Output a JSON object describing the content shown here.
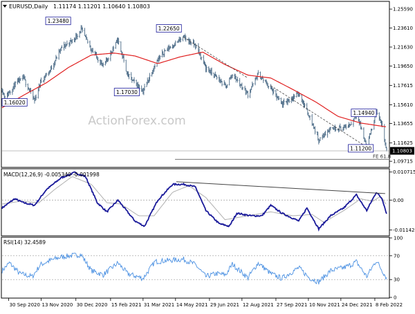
{
  "header": {
    "symbol_text": "EURUSD,Daily",
    "ohlc_text": "1.11174 1.11201 1.10640 1.10803"
  },
  "watermark": "ActionForex.com",
  "colors": {
    "bars": "#4a6a86",
    "moving_average": "#e02020",
    "macd": "#1a1a9a",
    "macd_signal": "#b0b0b0",
    "rsi": "#4a90e2",
    "trendline": "#444444",
    "price_label_bg": "#ffffff",
    "grid": "#cfcfcf",
    "fe_line": "#777777"
  },
  "chart_data": [
    {
      "type": "ohlc",
      "panel": "price",
      "title": "EURUSD,Daily",
      "ohlc_last": {
        "open": 1.11174,
        "high": 1.11201,
        "low": 1.1064,
        "close": 1.10803
      },
      "ylim": [
        1.0915,
        1.2632
      ],
      "yticks": [
        1.09715,
        1.11625,
        1.13655,
        1.1561,
        1.17615,
        1.1965,
        1.2163,
        1.2361,
        1.2559
      ],
      "ytick_labels": [
        "1.09715",
        "1.11625",
        "1.13655",
        "1.15610",
        "1.17615",
        "1.19650",
        "1.21630",
        "1.23610",
        "1.25590"
      ],
      "current_price_label": "1.10803",
      "current_price": 1.10803,
      "xtick_labels": [
        "30 Sep 2020",
        "13 Nov 2020",
        "30 Dec 2020",
        "15 Feb 2021",
        "31 Mar 2021",
        "14 May 2021",
        "29 Jun 2021",
        "12 Aug 2021",
        "27 Sep 2021",
        "10 Nov 2021",
        "24 Dec 2021",
        "8 Feb 2022"
      ],
      "xtick_dates": [
        "2020-09-30",
        "2020-11-13",
        "2020-12-30",
        "2021-02-15",
        "2021-03-31",
        "2021-05-14",
        "2021-06-29",
        "2021-08-12",
        "2021-09-27",
        "2021-11-10",
        "2021-12-24",
        "2022-02-08"
      ],
      "date_range": [
        "2020-09-21",
        "2022-02-24"
      ],
      "price_path": [
        [
          "2020-09-21",
          1.172
        ],
        [
          "2020-09-25",
          1.163
        ],
        [
          "2020-10-08",
          1.177
        ],
        [
          "2020-10-20",
          1.184
        ],
        [
          "2020-11-04",
          1.1603
        ],
        [
          "2020-11-12",
          1.18
        ],
        [
          "2020-11-25",
          1.192
        ],
        [
          "2020-12-10",
          1.215
        ],
        [
          "2020-12-28",
          1.225
        ],
        [
          "2021-01-06",
          1.2348
        ],
        [
          "2021-01-20",
          1.214
        ],
        [
          "2021-02-05",
          1.196
        ],
        [
          "2021-02-25",
          1.224
        ],
        [
          "2021-03-10",
          1.187
        ],
        [
          "2021-03-31",
          1.1703
        ],
        [
          "2021-04-16",
          1.198
        ],
        [
          "2021-04-29",
          1.212
        ],
        [
          "2021-05-25",
          1.2265
        ],
        [
          "2021-06-10",
          1.218
        ],
        [
          "2021-06-24",
          1.195
        ],
        [
          "2021-07-08",
          1.185
        ],
        [
          "2021-07-21",
          1.175
        ],
        [
          "2021-07-30",
          1.188
        ],
        [
          "2021-08-20",
          1.167
        ],
        [
          "2021-09-03",
          1.188
        ],
        [
          "2021-09-20",
          1.173
        ],
        [
          "2021-10-05",
          1.156
        ],
        [
          "2021-10-28",
          1.168
        ],
        [
          "2021-11-11",
          1.145
        ],
        [
          "2021-11-24",
          1.119
        ],
        [
          "2021-12-10",
          1.132
        ],
        [
          "2021-12-28",
          1.132
        ],
        [
          "2022-01-07",
          1.136
        ],
        [
          "2022-01-14",
          1.148
        ],
        [
          "2022-01-28",
          1.112
        ],
        [
          "2022-02-10",
          1.1494
        ],
        [
          "2022-02-18",
          1.132
        ],
        [
          "2022-02-24",
          1.108
        ]
      ],
      "moving_average_path": [
        [
          "2020-09-21",
          1.153
        ],
        [
          "2020-10-20",
          1.166
        ],
        [
          "2020-11-20",
          1.179
        ],
        [
          "2020-12-20",
          1.195
        ],
        [
          "2021-01-20",
          1.208
        ],
        [
          "2021-02-20",
          1.21
        ],
        [
          "2021-03-20",
          1.207
        ],
        [
          "2021-04-20",
          1.199
        ],
        [
          "2021-05-20",
          1.206
        ],
        [
          "2021-06-20",
          1.211
        ],
        [
          "2021-07-20",
          1.198
        ],
        [
          "2021-08-20",
          1.187
        ],
        [
          "2021-09-20",
          1.184
        ],
        [
          "2021-10-20",
          1.172
        ],
        [
          "2021-11-20",
          1.159
        ],
        [
          "2021-12-20",
          1.144
        ],
        [
          "2022-01-20",
          1.137
        ],
        [
          "2022-02-24",
          1.133
        ]
      ],
      "annotations": [
        {
          "text": "1.23480",
          "date": "2020-12-06",
          "price": 1.2432
        },
        {
          "text": "1.22650",
          "date": "2021-05-05",
          "price": 1.2354
        },
        {
          "text": "1.16020",
          "date": "2020-10-08",
          "price": 1.1583
        },
        {
          "text": "1.17030",
          "date": "2021-03-09",
          "price": 1.169
        },
        {
          "text": "1.14940",
          "date": "2022-01-24",
          "price": 1.1473
        },
        {
          "text": "1.11200",
          "date": "2022-01-20",
          "price": 1.1103
        }
      ],
      "trendlines": [
        {
          "from": [
            "2021-05-25",
            1.2265
          ],
          "to": [
            "2021-08-20",
            1.184
          ],
          "style": "dashed"
        },
        {
          "from": [
            "2021-09-20",
            1.176
          ],
          "to": [
            "2022-01-28",
            1.112
          ],
          "style": "dashed"
        }
      ],
      "fe_label": "FE 61.8",
      "fe_level": 1.0992
    },
    {
      "type": "line",
      "panel": "macd",
      "title": "MACD(12,26,9) -0.005340 -0.001998",
      "ylim": [
        -0.0134,
        0.0117
      ],
      "ytick_labels": [
        "0.010715",
        "0.00",
        "-0.011424"
      ],
      "yticks": [
        0.010715,
        0.0,
        -0.011424
      ],
      "series": [
        {
          "role": "macd",
          "values": [
            [
              "2020-09-21",
              -0.003
            ],
            [
              "2020-10-08",
              0.0005
            ],
            [
              "2020-10-20",
              -0.001
            ],
            [
              "2020-11-04",
              -0.002
            ],
            [
              "2020-11-20",
              0.004
            ],
            [
              "2020-12-10",
              0.0085
            ],
            [
              "2020-12-28",
              0.0105
            ],
            [
              "2021-01-12",
              0.009
            ],
            [
              "2021-01-28",
              -0.001
            ],
            [
              "2021-02-10",
              -0.0045
            ],
            [
              "2021-02-25",
              0.0
            ],
            [
              "2021-03-20",
              -0.008
            ],
            [
              "2021-04-02",
              -0.01
            ],
            [
              "2021-04-20",
              0.0
            ],
            [
              "2021-05-10",
              0.006
            ],
            [
              "2021-05-26",
              0.006
            ],
            [
              "2021-06-10",
              0.005
            ],
            [
              "2021-06-24",
              -0.004
            ],
            [
              "2021-07-12",
              -0.009
            ],
            [
              "2021-07-26",
              -0.01
            ],
            [
              "2021-08-05",
              -0.005
            ],
            [
              "2021-08-24",
              -0.006
            ],
            [
              "2021-09-08",
              -0.006
            ],
            [
              "2021-09-20",
              -0.002
            ],
            [
              "2021-10-05",
              -0.005
            ],
            [
              "2021-10-28",
              -0.008
            ],
            [
              "2021-11-08",
              -0.003
            ],
            [
              "2021-11-24",
              -0.011
            ],
            [
              "2021-12-10",
              -0.006
            ],
            [
              "2021-12-28",
              -0.003
            ],
            [
              "2022-01-14",
              0.002
            ],
            [
              "2022-01-28",
              -0.004
            ],
            [
              "2022-02-10",
              0.003
            ],
            [
              "2022-02-18",
              0.0005
            ],
            [
              "2022-02-24",
              -0.0053
            ]
          ]
        },
        {
          "role": "signal",
          "values": [
            [
              "2020-09-21",
              -0.0015
            ],
            [
              "2020-10-15",
              -0.0005
            ],
            [
              "2020-11-10",
              -0.001
            ],
            [
              "2020-12-01",
              0.004
            ],
            [
              "2020-12-25",
              0.009
            ],
            [
              "2021-01-20",
              0.006
            ],
            [
              "2021-02-10",
              -0.001
            ],
            [
              "2021-03-01",
              -0.0015
            ],
            [
              "2021-03-25",
              -0.006
            ],
            [
              "2021-04-15",
              -0.006
            ],
            [
              "2021-05-10",
              0.003
            ],
            [
              "2021-06-01",
              0.0055
            ],
            [
              "2021-06-24",
              0.001
            ],
            [
              "2021-07-20",
              -0.0075
            ],
            [
              "2021-08-20",
              -0.006
            ],
            [
              "2021-09-20",
              -0.0045
            ],
            [
              "2021-10-20",
              -0.006
            ],
            [
              "2021-11-15",
              -0.0055
            ],
            [
              "2021-12-01",
              -0.0085
            ],
            [
              "2021-12-28",
              -0.004
            ],
            [
              "2022-01-20",
              0.0005
            ],
            [
              "2022-02-05",
              -0.0005
            ],
            [
              "2022-02-16",
              0.0015
            ],
            [
              "2022-02-24",
              -0.002
            ]
          ]
        }
      ],
      "trendline": {
        "from": [
          "2021-05-15",
          0.007
        ],
        "to": [
          "2022-02-22",
          0.0025
        ]
      }
    },
    {
      "type": "line",
      "panel": "rsi",
      "title": "RSI(14) 32.4589",
      "ylim": [
        0,
        100
      ],
      "yticks": [
        100,
        70,
        30,
        0
      ],
      "ytick_labels": [
        "100",
        "70",
        "30",
        "0"
      ],
      "series": [
        {
          "role": "rsi",
          "values": [
            [
              "2020-09-21",
              45
            ],
            [
              "2020-10-01",
              58
            ],
            [
              "2020-10-15",
              40
            ],
            [
              "2020-11-01",
              35
            ],
            [
              "2020-11-12",
              55
            ],
            [
              "2020-11-25",
              62
            ],
            [
              "2020-12-10",
              68
            ],
            [
              "2020-12-22",
              70
            ],
            [
              "2021-01-06",
              72
            ],
            [
              "2021-01-20",
              45
            ],
            [
              "2021-02-05",
              38
            ],
            [
              "2021-02-25",
              58
            ],
            [
              "2021-03-10",
              40
            ],
            [
              "2021-03-31",
              32
            ],
            [
              "2021-04-16",
              60
            ],
            [
              "2021-05-03",
              62
            ],
            [
              "2021-05-25",
              64
            ],
            [
              "2021-06-10",
              55
            ],
            [
              "2021-06-24",
              35
            ],
            [
              "2021-07-08",
              40
            ],
            [
              "2021-07-21",
              38
            ],
            [
              "2021-07-30",
              56
            ],
            [
              "2021-08-20",
              33
            ],
            [
              "2021-09-03",
              58
            ],
            [
              "2021-09-20",
              40
            ],
            [
              "2021-10-05",
              32
            ],
            [
              "2021-10-28",
              50
            ],
            [
              "2021-11-11",
              33
            ],
            [
              "2021-11-24",
              26
            ],
            [
              "2021-12-10",
              45
            ],
            [
              "2021-12-28",
              50
            ],
            [
              "2022-01-07",
              55
            ],
            [
              "2022-01-14",
              60
            ],
            [
              "2022-01-28",
              35
            ],
            [
              "2022-02-10",
              62
            ],
            [
              "2022-02-18",
              45
            ],
            [
              "2022-02-24",
              32.46
            ]
          ]
        }
      ]
    }
  ]
}
